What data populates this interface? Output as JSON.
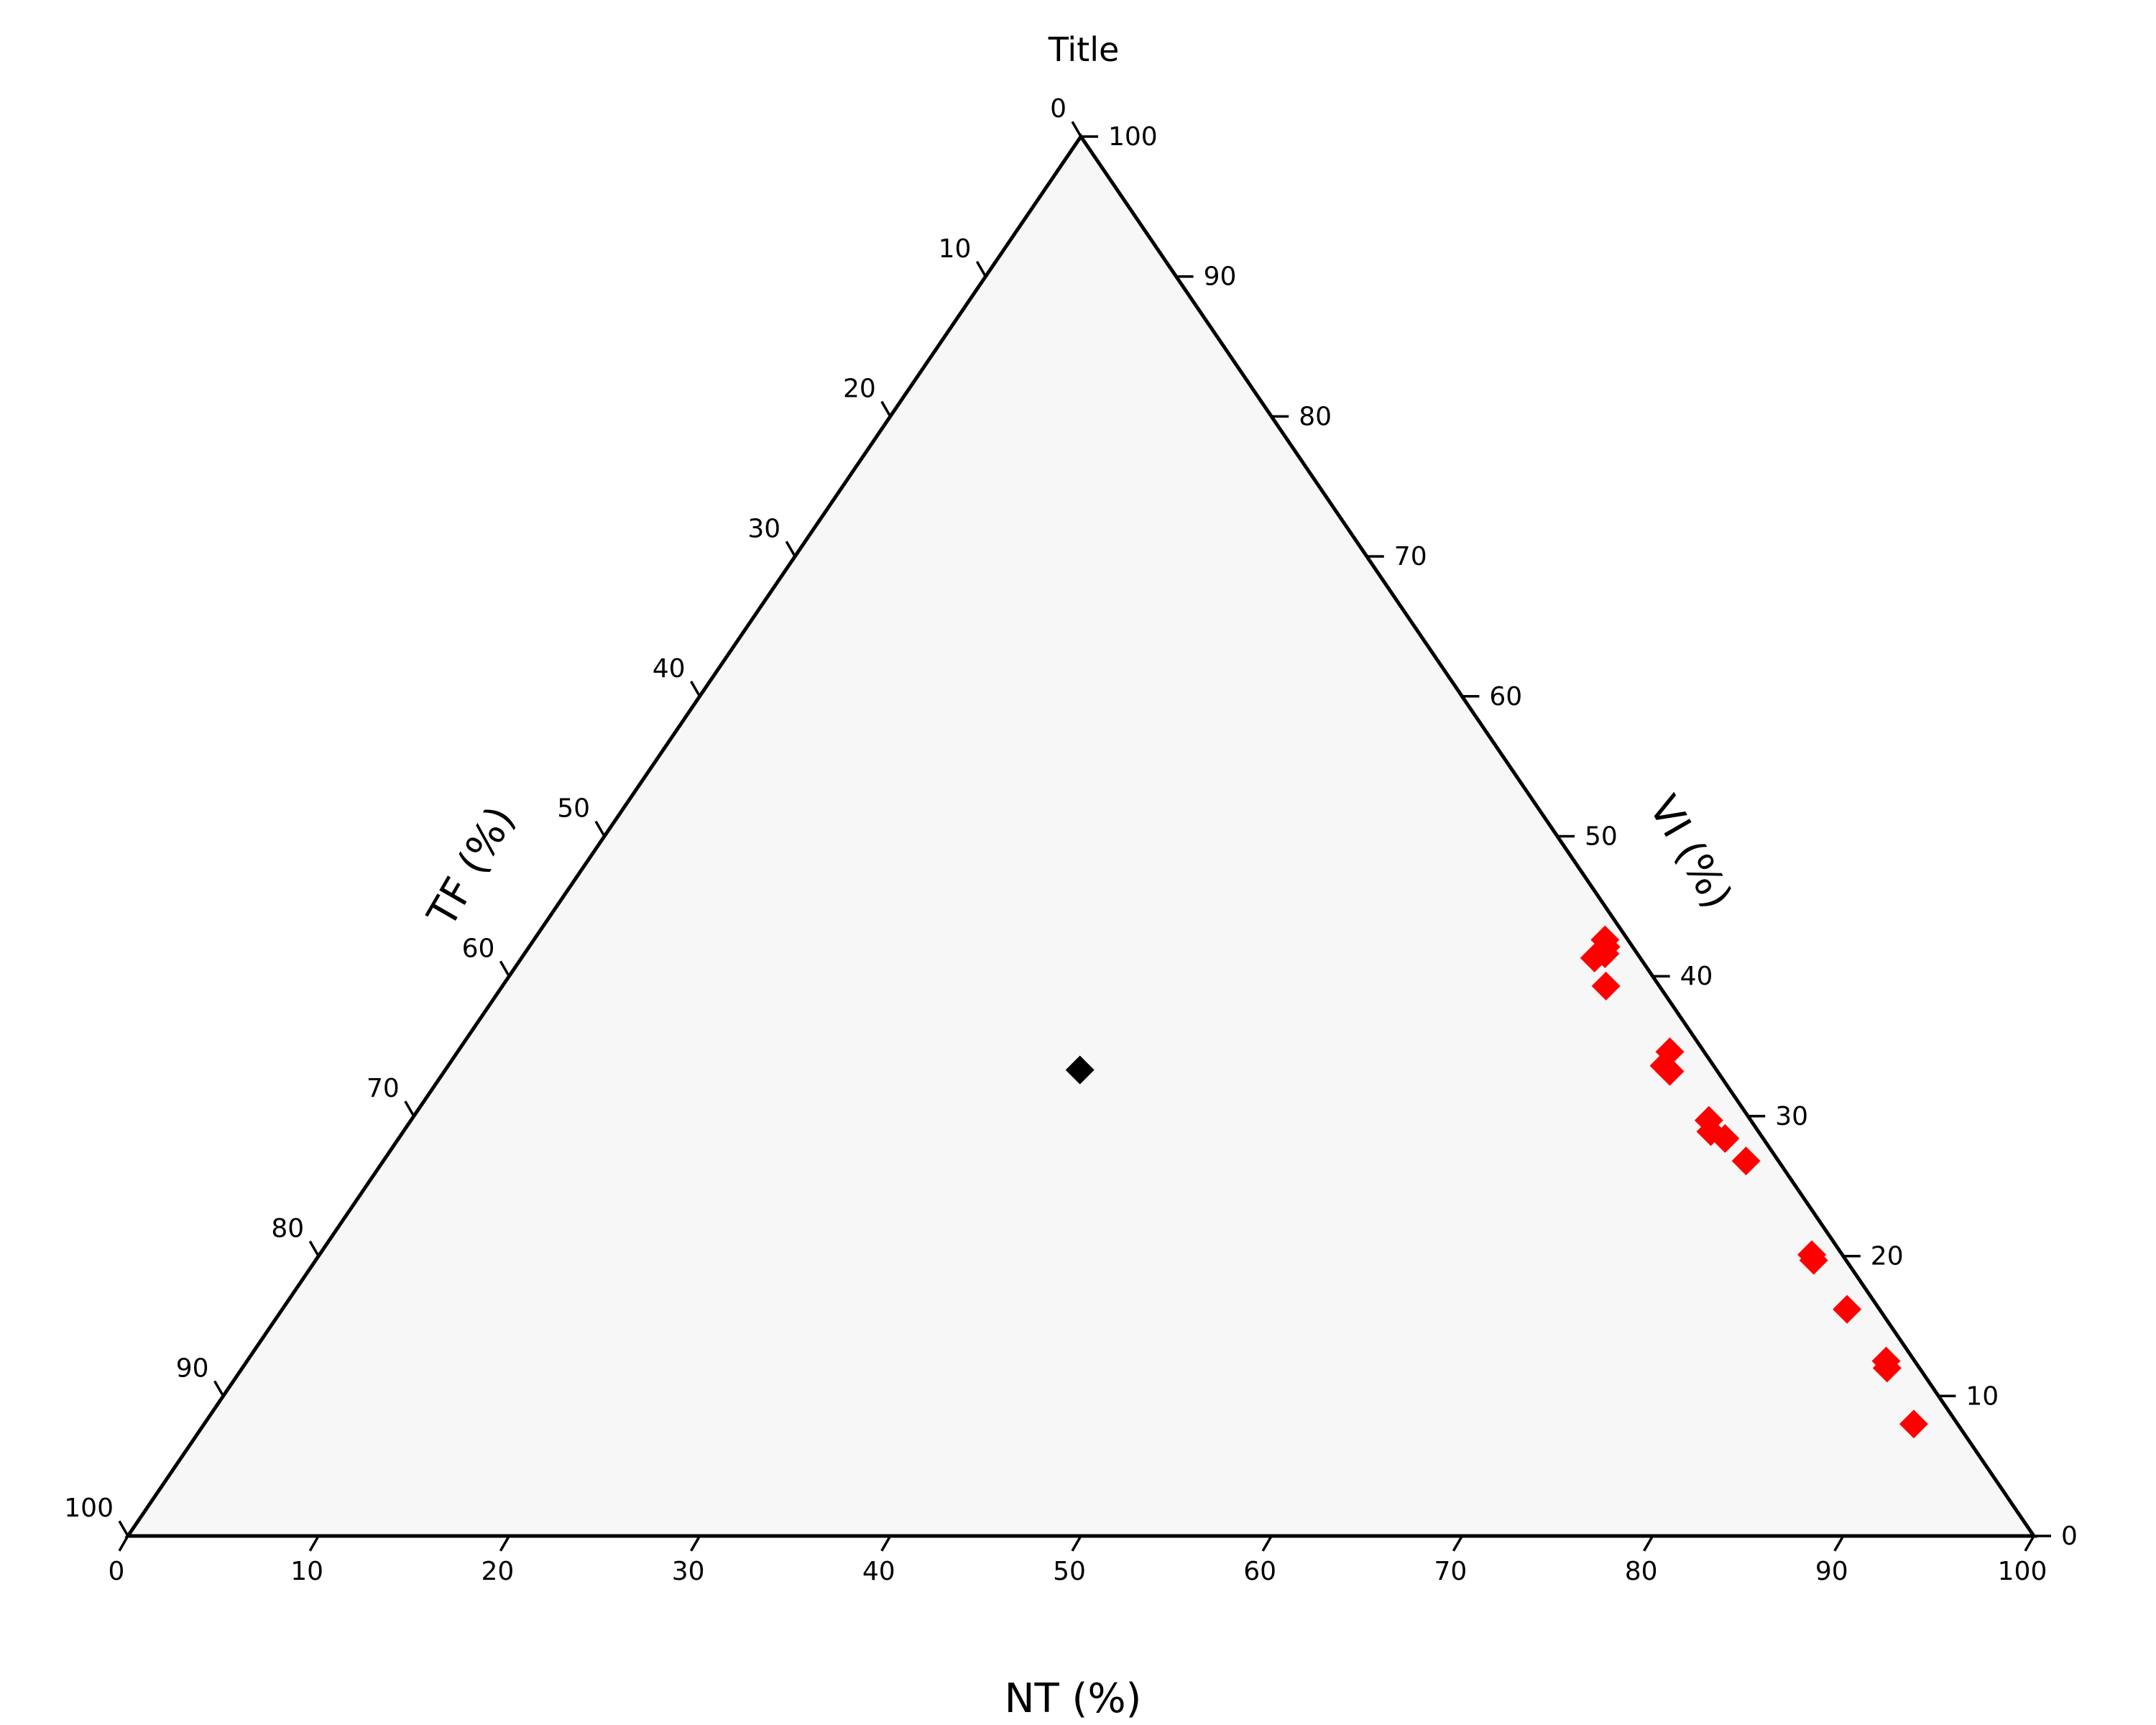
{
  "chart_data": {
    "type": "scatter",
    "subtype": "ternary",
    "title": "Title",
    "axes": {
      "bottom": {
        "label": "NT (%)",
        "range": [
          0,
          100
        ]
      },
      "right": {
        "label": "VI (%)",
        "range": [
          0,
          100
        ]
      },
      "left": {
        "label": "TF (%)",
        "range": [
          0,
          100
        ]
      }
    },
    "ticks": [
      "0",
      "10",
      "20",
      "30",
      "40",
      "50",
      "60",
      "70",
      "80",
      "90",
      "100"
    ],
    "grid": true,
    "background_color": "#f7f7f7",
    "series": [
      {
        "marker": "diamond",
        "color": "#ff0000",
        "points": [
          {
            "NT": 56.2,
            "VI": 42.6,
            "TF": 1.2
          },
          {
            "NT": 56.5,
            "VI": 42.1,
            "TF": 1.4
          },
          {
            "NT": 56.3,
            "VI": 41.3,
            "TF": 2.4
          },
          {
            "NT": 56.7,
            "VI": 41.6,
            "TF": 1.7
          },
          {
            "NT": 57.9,
            "VI": 39.3,
            "TF": 2.8
          },
          {
            "NT": 63.6,
            "VI": 34.6,
            "TF": 1.8
          },
          {
            "NT": 63.8,
            "VI": 33.6,
            "TF": 2.6
          },
          {
            "NT": 64.3,
            "VI": 33.2,
            "TF": 2.5
          },
          {
            "NT": 68.1,
            "VI": 29.7,
            "TF": 2.2
          },
          {
            "NT": 68.6,
            "VI": 28.9,
            "TF": 2.5
          },
          {
            "NT": 69.6,
            "VI": 28.4,
            "TF": 2.0
          },
          {
            "NT": 71.5,
            "VI": 26.8,
            "TF": 1.7
          },
          {
            "NT": 78.3,
            "VI": 20.1,
            "TF": 1.6
          },
          {
            "NT": 78.6,
            "VI": 19.7,
            "TF": 1.7
          },
          {
            "NT": 82.1,
            "VI": 16.2,
            "TF": 1.7
          },
          {
            "NT": 86.0,
            "VI": 12.5,
            "TF": 1.5
          },
          {
            "NT": 86.3,
            "VI": 12.0,
            "TF": 1.7
          },
          {
            "NT": 89.7,
            "VI": 8.0,
            "TF": 2.3
          }
        ]
      },
      {
        "marker": "diamond",
        "color": "#000000",
        "points": [
          {
            "NT": 33.3,
            "VI": 33.3,
            "TF": 33.4
          }
        ]
      }
    ]
  }
}
